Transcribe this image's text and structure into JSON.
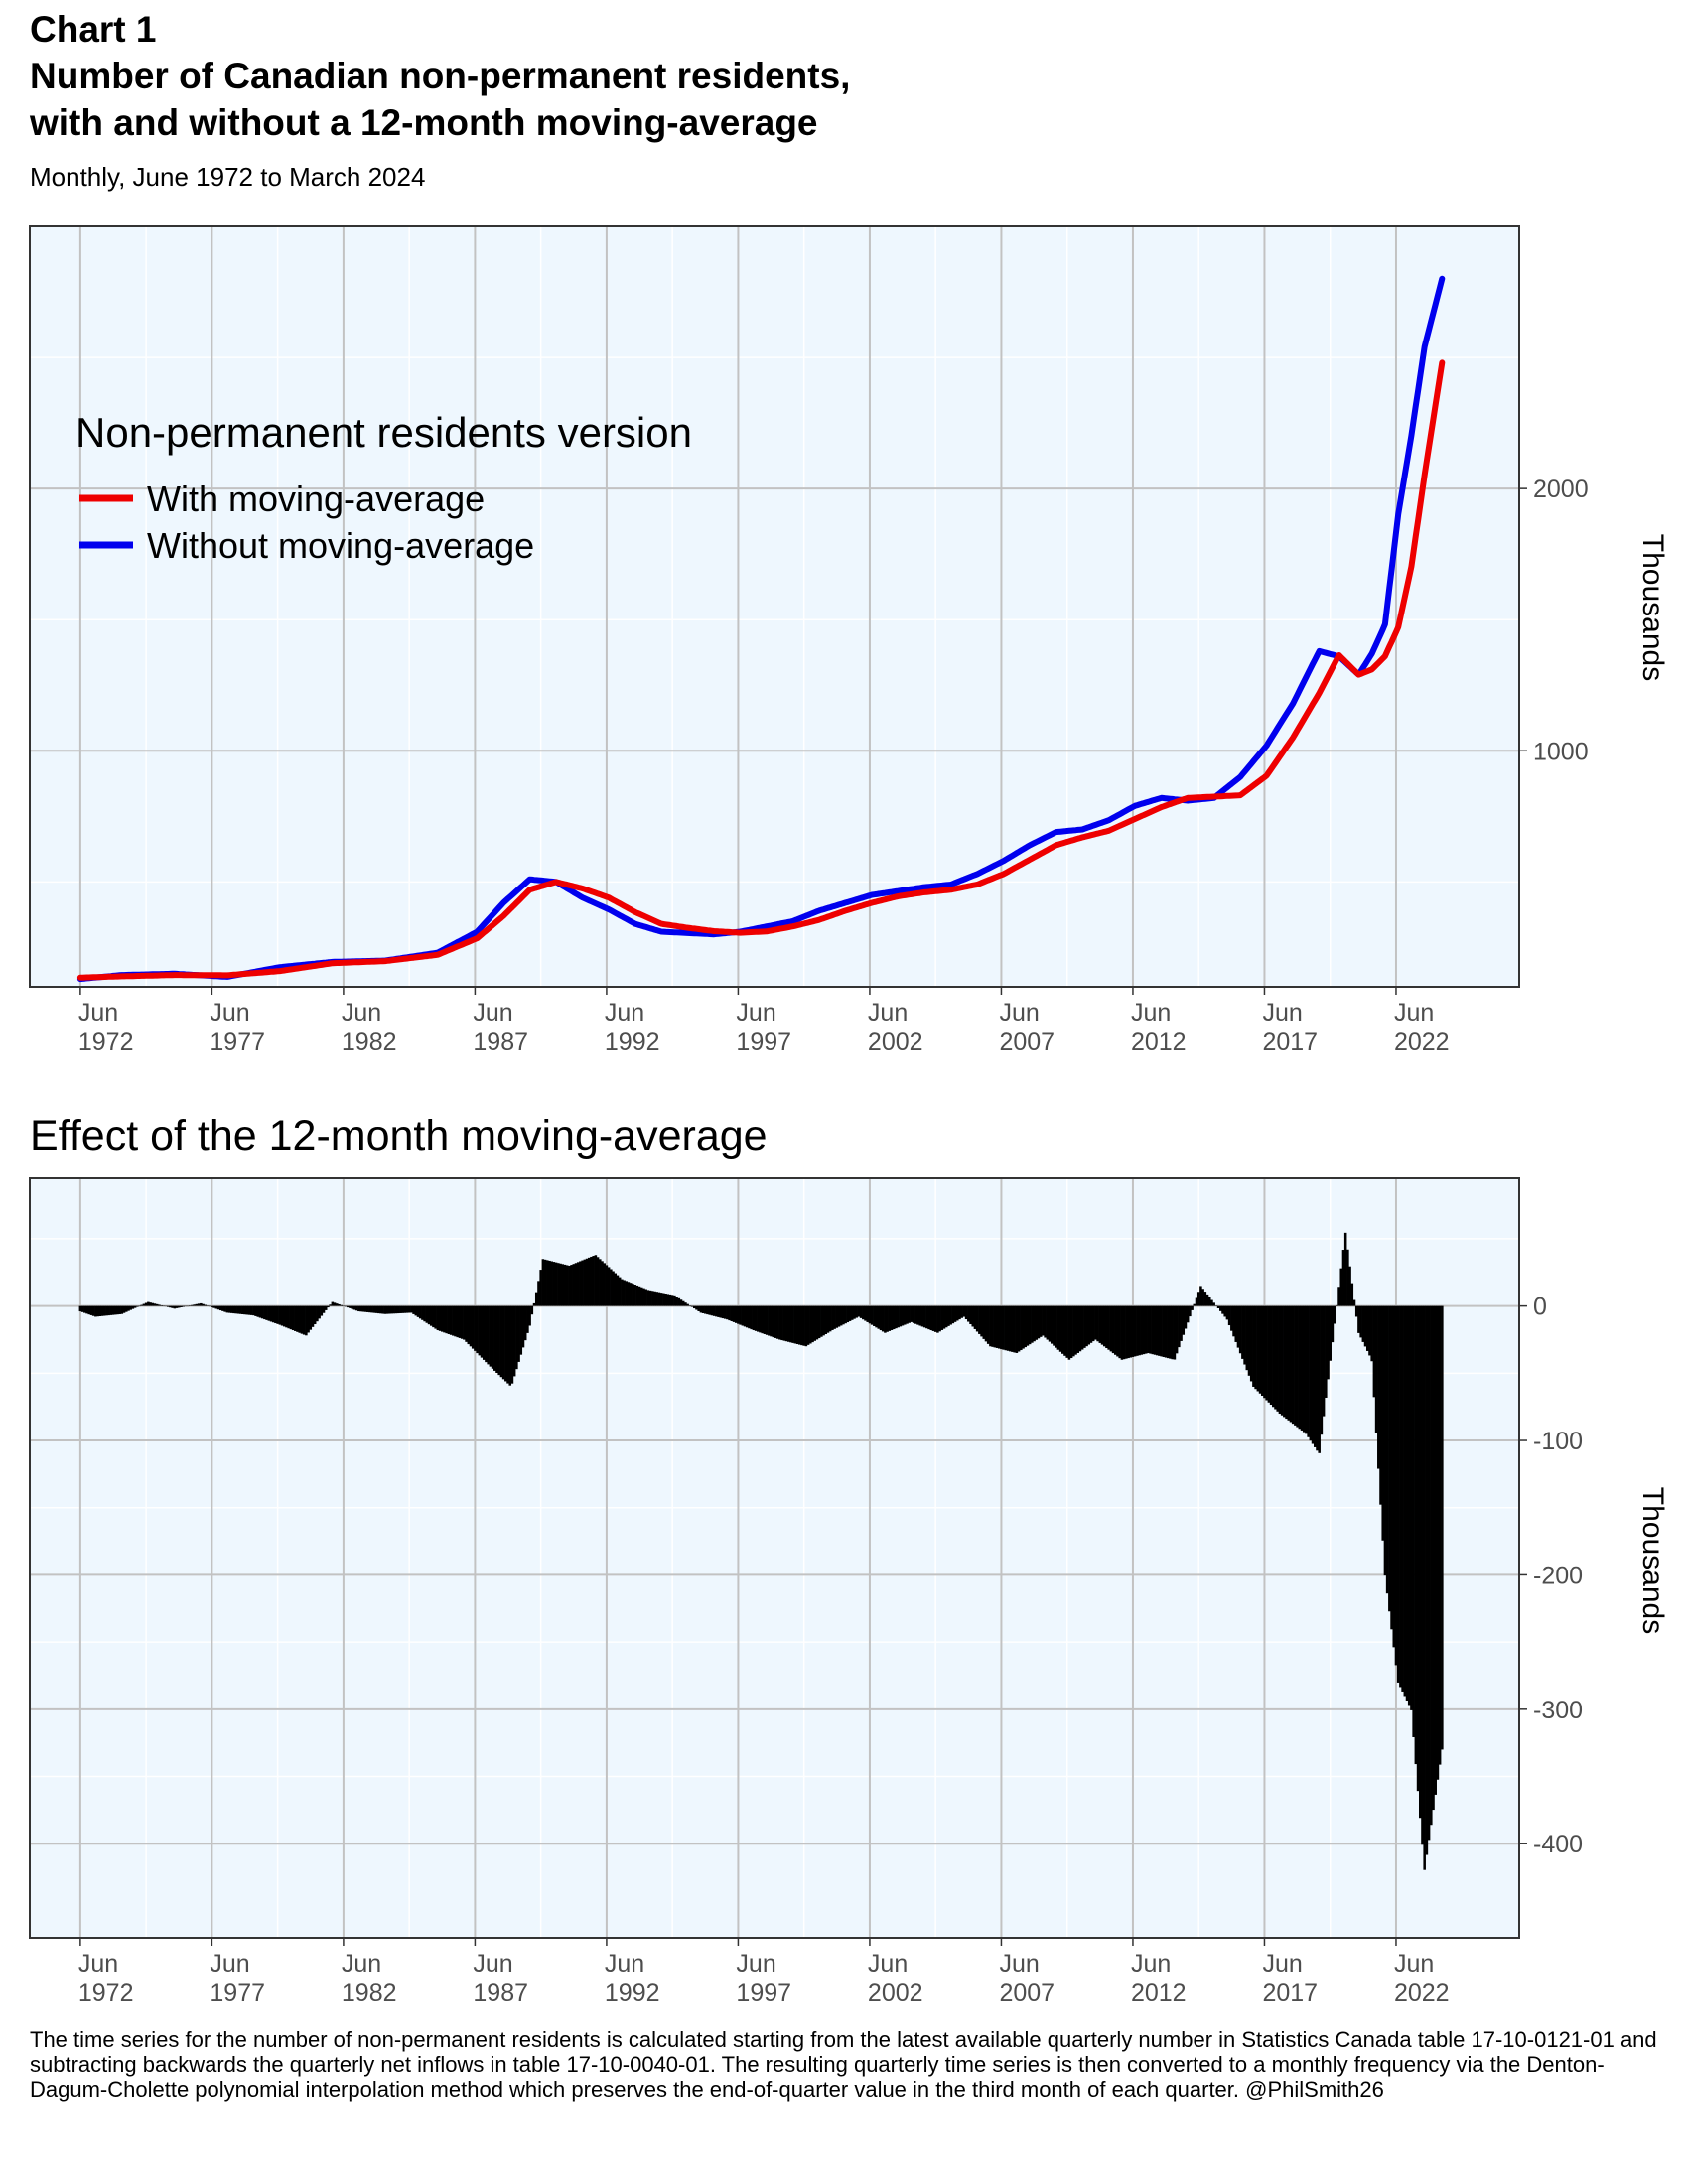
{
  "header": {
    "label": "Chart 1",
    "title_line1": "Number of Canadian non-permanent residents,",
    "title_line2": "with and without a 12-month moving-average",
    "subtitle": "Monthly, June 1972 to March 2024"
  },
  "footnote": "The time series for the number of non-permanent residents is calculated starting from the latest available quarterly number in Statistics Canada table 17-10-0121-01 and subtracting backwards the quarterly net inflows in table 17-10-0040-01. The resulting quarterly time series is then converted to a monthly frequency via the Denton-Dagum-Cholette polynomial interpolation method which preserves the end-of-quarter value in the third month of each quarter. @PhilSmith26",
  "colors": {
    "with_ma": "#ee0000",
    "without_ma": "#0000ee",
    "effect_bars": "#000000",
    "panel_bg": "#eef7fe",
    "grid_major": "#c2c2c2"
  },
  "chart_data": [
    {
      "type": "line",
      "title": "",
      "ylabel": "Thousands",
      "xlim": [
        1970.5,
        2027.1
      ],
      "ylim": [
        100,
        3000
      ],
      "x_tick_values": [
        1972.42,
        1977.42,
        1982.42,
        1987.42,
        1992.42,
        1997.42,
        2002.42,
        2007.42,
        2012.42,
        2017.42,
        2022.42
      ],
      "x_tick_labels": [
        [
          "Jun",
          "1972"
        ],
        [
          "Jun",
          "1977"
        ],
        [
          "Jun",
          "1982"
        ],
        [
          "Jun",
          "1987"
        ],
        [
          "Jun",
          "1992"
        ],
        [
          "Jun",
          "1997"
        ],
        [
          "Jun",
          "2002"
        ],
        [
          "Jun",
          "2007"
        ],
        [
          "Jun",
          "2012"
        ],
        [
          "Jun",
          "2017"
        ],
        [
          "Jun",
          "2022"
        ]
      ],
      "y_ticks": [
        1000,
        2000
      ],
      "y_tick_labels": [
        "1000",
        "2000"
      ],
      "grid": true,
      "legend": {
        "title": "Non-permanent residents version",
        "position": "top-left"
      },
      "series": [
        {
          "name": "With moving-average",
          "color": "#ee0000",
          "points": [
            [
              1972.42,
              135
            ],
            [
              1974,
              140
            ],
            [
              1976,
              145
            ],
            [
              1978,
              144
            ],
            [
              1980,
              160
            ],
            [
              1982,
              190
            ],
            [
              1984,
              198
            ],
            [
              1986,
              222
            ],
            [
              1987.5,
              285
            ],
            [
              1988.5,
              370
            ],
            [
              1989.5,
              470
            ],
            [
              1990.5,
              500
            ],
            [
              1991.5,
              475
            ],
            [
              1992.5,
              440
            ],
            [
              1993.5,
              385
            ],
            [
              1994.5,
              340
            ],
            [
              1995.5,
              325
            ],
            [
              1996.5,
              312
            ],
            [
              1997.5,
              306
            ],
            [
              1998.5,
              311
            ],
            [
              1999.5,
              330
            ],
            [
              2000.5,
              355
            ],
            [
              2001.5,
              390
            ],
            [
              2002.5,
              420
            ],
            [
              2003.5,
              445
            ],
            [
              2004.5,
              460
            ],
            [
              2005.5,
              470
            ],
            [
              2006.5,
              490
            ],
            [
              2007.5,
              530
            ],
            [
              2008.5,
              585
            ],
            [
              2009.5,
              640
            ],
            [
              2010.5,
              670
            ],
            [
              2011.5,
              695
            ],
            [
              2012.5,
              740
            ],
            [
              2013.5,
              785
            ],
            [
              2014.5,
              820
            ],
            [
              2015.5,
              825
            ],
            [
              2016.5,
              830
            ],
            [
              2017.5,
              905
            ],
            [
              2018.5,
              1050
            ],
            [
              2019.5,
              1220
            ],
            [
              2020.25,
              1365
            ],
            [
              2021,
              1290
            ],
            [
              2021.5,
              1310
            ],
            [
              2022,
              1360
            ],
            [
              2022.5,
              1470
            ],
            [
              2023,
              1700
            ],
            [
              2023.5,
              2050
            ],
            [
              2024.17,
              2480
            ]
          ]
        },
        {
          "name": "Without moving-average",
          "color": "#0000ee",
          "points": [
            [
              1972.42,
              130
            ],
            [
              1974,
              145
            ],
            [
              1976,
              150
            ],
            [
              1978,
              138
            ],
            [
              1980,
              175
            ],
            [
              1982,
              195
            ],
            [
              1984,
              200
            ],
            [
              1986,
              230
            ],
            [
              1987.5,
              310
            ],
            [
              1988.5,
              420
            ],
            [
              1989.5,
              510
            ],
            [
              1990.5,
              500
            ],
            [
              1991.5,
              440
            ],
            [
              1992.5,
              395
            ],
            [
              1993.5,
              340
            ],
            [
              1994.5,
              310
            ],
            [
              1995.5,
              305
            ],
            [
              1996.5,
              300
            ],
            [
              1997.5,
              310
            ],
            [
              1998.5,
              330
            ],
            [
              1999.5,
              350
            ],
            [
              2000.5,
              390
            ],
            [
              2001.5,
              420
            ],
            [
              2002.5,
              450
            ],
            [
              2003.5,
              465
            ],
            [
              2004.5,
              480
            ],
            [
              2005.5,
              490
            ],
            [
              2006.5,
              530
            ],
            [
              2007.5,
              580
            ],
            [
              2008.5,
              640
            ],
            [
              2009.5,
              690
            ],
            [
              2010.5,
              700
            ],
            [
              2011.5,
              735
            ],
            [
              2012.5,
              790
            ],
            [
              2013.5,
              820
            ],
            [
              2014.5,
              810
            ],
            [
              2015.5,
              820
            ],
            [
              2016.5,
              900
            ],
            [
              2017.5,
              1020
            ],
            [
              2018.5,
              1180
            ],
            [
              2019.5,
              1380
            ],
            [
              2020.25,
              1360
            ],
            [
              2021,
              1290
            ],
            [
              2021.5,
              1370
            ],
            [
              2022,
              1480
            ],
            [
              2022.5,
              1900
            ],
            [
              2023,
              2200
            ],
            [
              2023.5,
              2540
            ],
            [
              2024.17,
              2800
            ]
          ]
        }
      ]
    },
    {
      "type": "bar",
      "title": "Effect of the 12-month moving-average",
      "ylabel": "Thousands",
      "xlim": [
        1970.5,
        2027.1
      ],
      "ylim": [
        -470,
        95
      ],
      "x_tick_values": [
        1972.42,
        1977.42,
        1982.42,
        1987.42,
        1992.42,
        1997.42,
        2002.42,
        2007.42,
        2012.42,
        2017.42,
        2022.42
      ],
      "x_tick_labels": [
        [
          "Jun",
          "1972"
        ],
        [
          "Jun",
          "1977"
        ],
        [
          "Jun",
          "1982"
        ],
        [
          "Jun",
          "1987"
        ],
        [
          "Jun",
          "1992"
        ],
        [
          "Jun",
          "1997"
        ],
        [
          "Jun",
          "2002"
        ],
        [
          "Jun",
          "2007"
        ],
        [
          "Jun",
          "2012"
        ],
        [
          "Jun",
          "2017"
        ],
        [
          "Jun",
          "2022"
        ]
      ],
      "y_ticks": [
        -400,
        -300,
        -200,
        -100,
        0
      ],
      "y_tick_labels": [
        "-400",
        "-300",
        "-200",
        "-100",
        "0"
      ],
      "grid": true,
      "series": [
        {
          "name": "",
          "color": "#000000",
          "points": [
            [
              1972.42,
              -4
            ],
            [
              1973,
              -8
            ],
            [
              1974,
              -6
            ],
            [
              1975,
              3
            ],
            [
              1976,
              -2
            ],
            [
              1977,
              2
            ],
            [
              1978,
              -5
            ],
            [
              1979,
              -7
            ],
            [
              1980,
              -14
            ],
            [
              1981,
              -22
            ],
            [
              1982,
              3
            ],
            [
              1983,
              -4
            ],
            [
              1984,
              -6
            ],
            [
              1985,
              -5
            ],
            [
              1986,
              -18
            ],
            [
              1987,
              -25
            ],
            [
              1988,
              -45
            ],
            [
              1988.8,
              -60
            ],
            [
              1989.5,
              -15
            ],
            [
              1990,
              35
            ],
            [
              1991,
              30
            ],
            [
              1992,
              38
            ],
            [
              1993,
              20
            ],
            [
              1994,
              12
            ],
            [
              1995,
              8
            ],
            [
              1996,
              -5
            ],
            [
              1997,
              -10
            ],
            [
              1998,
              -18
            ],
            [
              1999,
              -25
            ],
            [
              2000,
              -30
            ],
            [
              2001,
              -18
            ],
            [
              2002,
              -8
            ],
            [
              2003,
              -20
            ],
            [
              2004,
              -12
            ],
            [
              2005,
              -20
            ],
            [
              2006,
              -8
            ],
            [
              2007,
              -30
            ],
            [
              2008,
              -35
            ],
            [
              2009,
              -22
            ],
            [
              2010,
              -40
            ],
            [
              2011,
              -25
            ],
            [
              2012,
              -40
            ],
            [
              2013,
              -35
            ],
            [
              2014,
              -40
            ],
            [
              2015,
              15
            ],
            [
              2016,
              -10
            ],
            [
              2017,
              -60
            ],
            [
              2018,
              -80
            ],
            [
              2019,
              -95
            ],
            [
              2019.5,
              -110
            ],
            [
              2020.5,
              55
            ],
            [
              2021,
              -20
            ],
            [
              2021.5,
              -40
            ],
            [
              2022,
              -200
            ],
            [
              2022.5,
              -280
            ],
            [
              2023,
              -300
            ],
            [
              2023.5,
              -420
            ],
            [
              2024.17,
              -330
            ]
          ]
        }
      ]
    }
  ]
}
